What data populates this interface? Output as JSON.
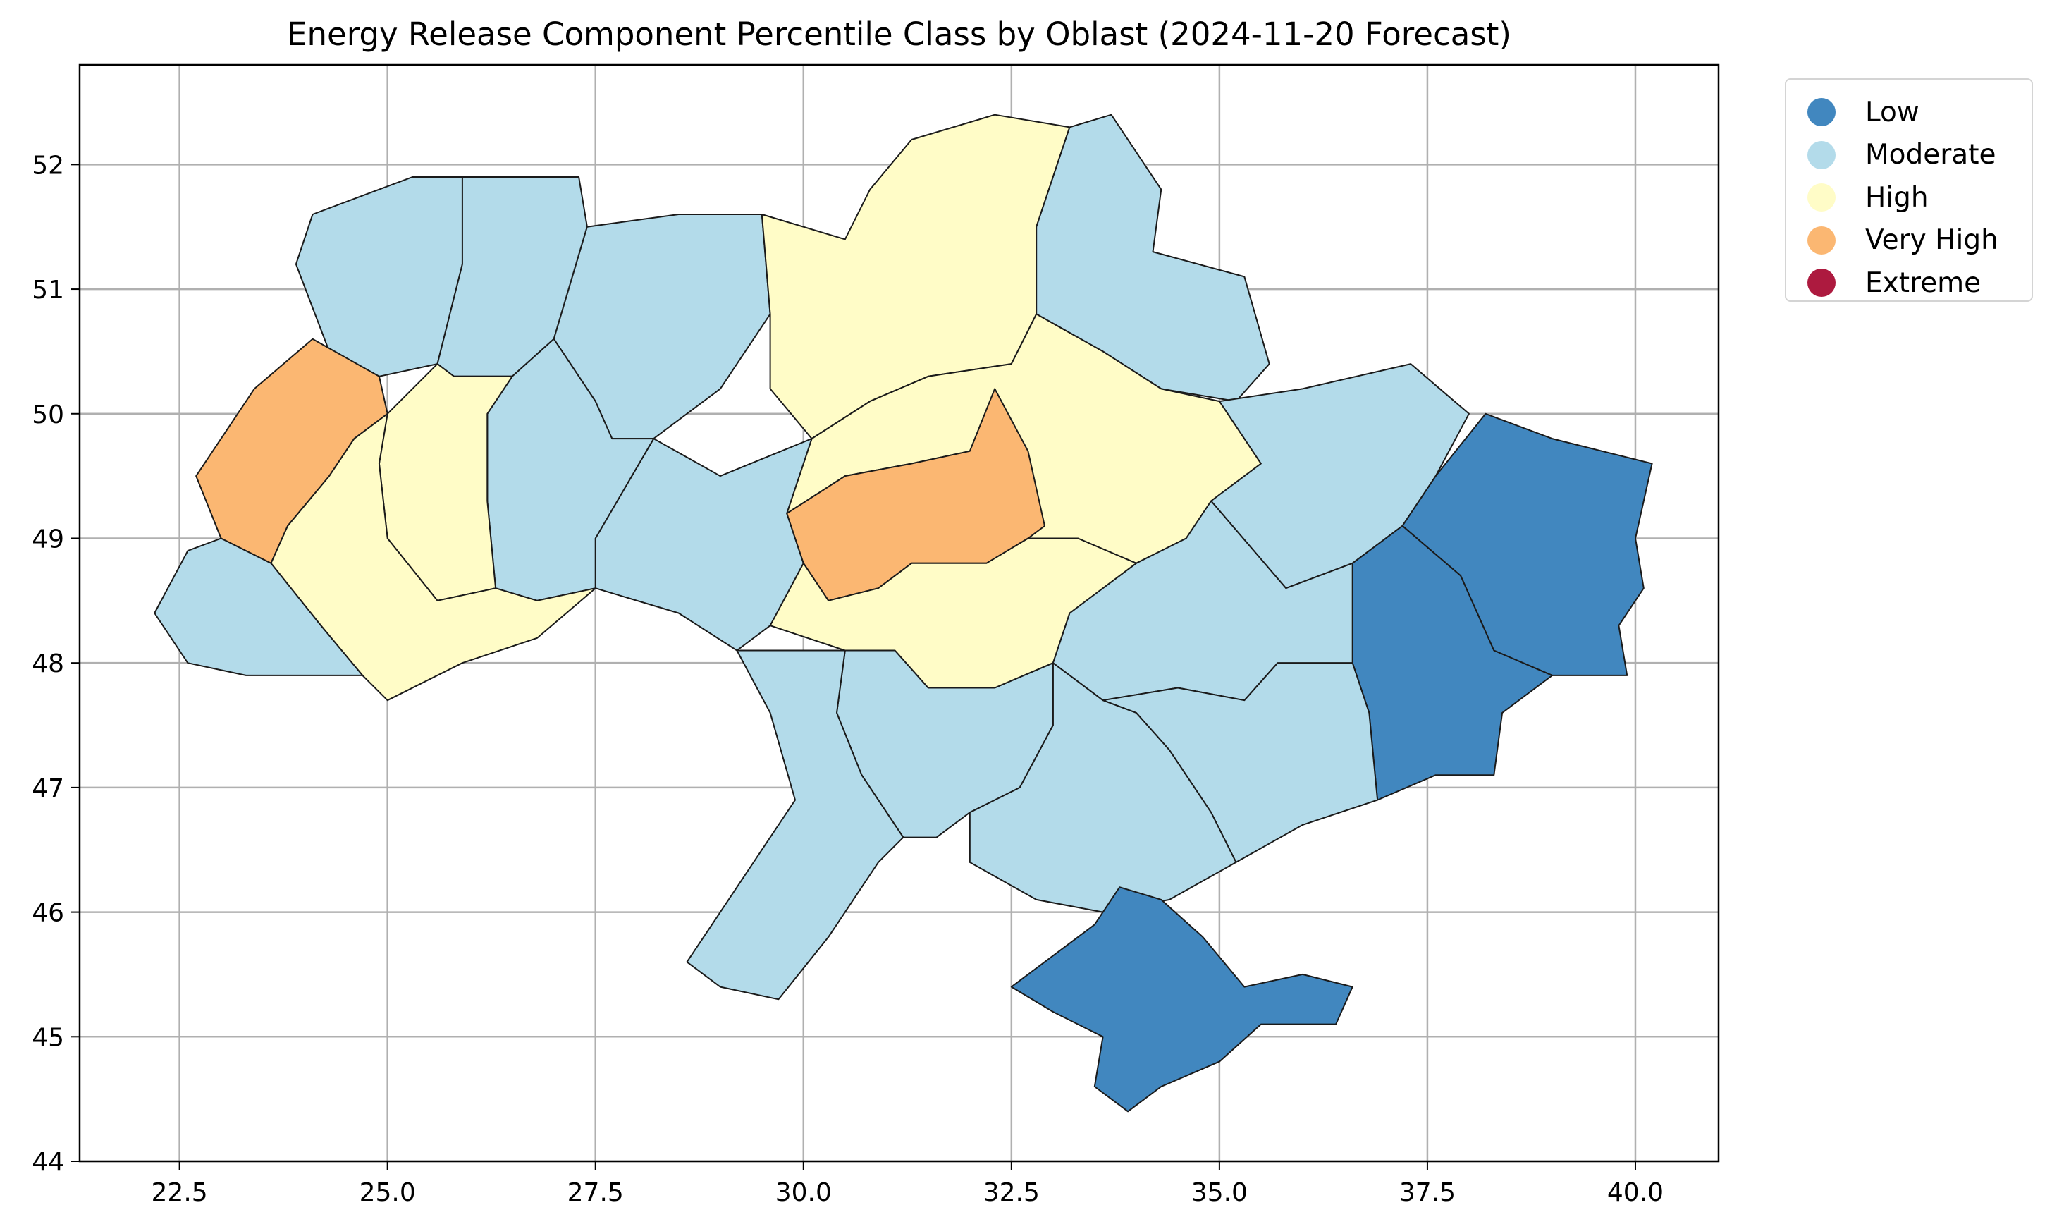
{
  "title": "Energy Release Component Percentile Class by Oblast (2024-11-20 Forecast)",
  "axes": {
    "x_ticks": [
      "22.5",
      "25.0",
      "27.5",
      "30.0",
      "32.5",
      "35.0",
      "37.5",
      "40.0"
    ],
    "y_ticks": [
      "44",
      "45",
      "46",
      "47",
      "48",
      "49",
      "50",
      "51",
      "52"
    ],
    "xlim": [
      21.3,
      41.0
    ],
    "ylim": [
      44.0,
      52.8
    ],
    "grid": true
  },
  "legend": {
    "placement": "outside-top-right",
    "items": [
      {
        "label": "Low",
        "color": "#4187bf"
      },
      {
        "label": "Moderate",
        "color": "#b3dbea"
      },
      {
        "label": "High",
        "color": "#fffcc7"
      },
      {
        "label": "Very High",
        "color": "#fbb772"
      },
      {
        "label": "Extreme",
        "color": "#ad1a3f"
      }
    ]
  },
  "colors": {
    "border": "#1a1a1a",
    "grid": "#b0b0b0"
  },
  "regions": [
    {
      "class": "Moderate",
      "poly": [
        [
          24.1,
          51.6
        ],
        [
          25.3,
          51.9
        ],
        [
          26.0,
          51.9
        ],
        [
          25.9,
          51.2
        ],
        [
          25.6,
          50.4
        ],
        [
          24.9,
          50.3
        ],
        [
          24.3,
          50.5
        ],
        [
          23.9,
          51.2
        ],
        [
          24.1,
          51.6
        ]
      ]
    },
    {
      "class": "Moderate",
      "poly": [
        [
          25.9,
          51.9
        ],
        [
          27.3,
          51.9
        ],
        [
          27.4,
          51.5
        ],
        [
          27.0,
          50.6
        ],
        [
          26.5,
          50.3
        ],
        [
          25.8,
          50.3
        ],
        [
          25.6,
          50.4
        ],
        [
          25.9,
          51.2
        ],
        [
          25.9,
          51.9
        ]
      ]
    },
    {
      "class": "Moderate",
      "poly": [
        [
          27.4,
          51.5
        ],
        [
          28.5,
          51.6
        ],
        [
          29.5,
          51.6
        ],
        [
          29.6,
          50.8
        ],
        [
          29.0,
          50.2
        ],
        [
          28.2,
          49.8
        ],
        [
          27.7,
          49.8
        ],
        [
          27.5,
          50.1
        ],
        [
          27.0,
          50.6
        ],
        [
          27.4,
          51.5
        ]
      ]
    },
    {
      "class": "High",
      "poly": [
        [
          29.5,
          51.6
        ],
        [
          30.5,
          51.4
        ],
        [
          30.8,
          51.8
        ],
        [
          31.3,
          52.2
        ],
        [
          32.3,
          52.4
        ],
        [
          33.2,
          52.3
        ],
        [
          32.8,
          51.5
        ],
        [
          32.8,
          50.8
        ],
        [
          32.5,
          50.4
        ],
        [
          31.5,
          50.3
        ],
        [
          30.8,
          50.1
        ],
        [
          30.1,
          49.8
        ],
        [
          29.6,
          50.2
        ],
        [
          29.6,
          50.8
        ],
        [
          29.5,
          51.6
        ]
      ]
    },
    {
      "class": "Moderate",
      "poly": [
        [
          33.2,
          52.3
        ],
        [
          33.7,
          52.4
        ],
        [
          34.3,
          51.8
        ],
        [
          34.2,
          51.3
        ],
        [
          35.3,
          51.1
        ],
        [
          35.6,
          50.4
        ],
        [
          35.2,
          50.1
        ],
        [
          34.3,
          50.2
        ],
        [
          33.6,
          50.5
        ],
        [
          32.8,
          50.8
        ],
        [
          32.8,
          51.5
        ],
        [
          33.2,
          52.3
        ]
      ]
    },
    {
      "class": "High",
      "poly": [
        [
          30.1,
          49.8
        ],
        [
          30.8,
          50.1
        ],
        [
          31.5,
          50.3
        ],
        [
          32.5,
          50.4
        ],
        [
          32.8,
          50.8
        ],
        [
          33.6,
          50.5
        ],
        [
          34.3,
          50.2
        ],
        [
          35.0,
          50.1
        ],
        [
          35.5,
          49.6
        ],
        [
          34.9,
          49.3
        ],
        [
          34.6,
          49.0
        ],
        [
          34.0,
          48.8
        ],
        [
          33.3,
          49.0
        ],
        [
          32.7,
          49.0
        ],
        [
          32.0,
          49.7
        ],
        [
          31.3,
          49.6
        ],
        [
          30.5,
          49.5
        ],
        [
          29.8,
          49.2
        ],
        [
          30.1,
          49.8
        ]
      ]
    },
    {
      "class": "Moderate",
      "poly": [
        [
          35.0,
          50.1
        ],
        [
          36.0,
          50.2
        ],
        [
          37.3,
          50.4
        ],
        [
          38.0,
          50.0
        ],
        [
          37.6,
          49.5
        ],
        [
          37.2,
          49.1
        ],
        [
          36.6,
          48.8
        ],
        [
          35.8,
          48.6
        ],
        [
          34.9,
          49.3
        ],
        [
          35.5,
          49.6
        ],
        [
          35.0,
          50.1
        ]
      ]
    },
    {
      "class": "Low",
      "poly": [
        [
          37.6,
          49.5
        ],
        [
          38.2,
          50.0
        ],
        [
          39.0,
          49.8
        ],
        [
          40.2,
          49.6
        ],
        [
          40.0,
          49.0
        ],
        [
          40.1,
          48.6
        ],
        [
          39.8,
          48.3
        ],
        [
          39.9,
          47.9
        ],
        [
          39.0,
          47.9
        ],
        [
          38.3,
          48.1
        ],
        [
          37.9,
          48.7
        ],
        [
          37.2,
          49.1
        ],
        [
          37.6,
          49.5
        ]
      ]
    },
    {
      "class": "Low",
      "poly": [
        [
          37.2,
          49.1
        ],
        [
          37.9,
          48.7
        ],
        [
          38.3,
          48.1
        ],
        [
          39.0,
          47.9
        ],
        [
          38.4,
          47.6
        ],
        [
          38.3,
          47.1
        ],
        [
          37.6,
          47.1
        ],
        [
          36.9,
          46.9
        ],
        [
          36.8,
          47.6
        ],
        [
          36.6,
          48.0
        ],
        [
          36.6,
          48.8
        ],
        [
          37.2,
          49.1
        ]
      ]
    },
    {
      "class": "Moderate",
      "poly": [
        [
          34.0,
          48.8
        ],
        [
          34.6,
          49.0
        ],
        [
          34.9,
          49.3
        ],
        [
          35.8,
          48.6
        ],
        [
          36.6,
          48.8
        ],
        [
          36.6,
          48.0
        ],
        [
          35.7,
          48.0
        ],
        [
          35.3,
          47.7
        ],
        [
          34.5,
          47.8
        ],
        [
          33.6,
          47.7
        ],
        [
          33.0,
          48.0
        ],
        [
          33.2,
          48.4
        ],
        [
          34.0,
          48.8
        ]
      ]
    },
    {
      "class": "Moderate",
      "poly": [
        [
          33.6,
          47.7
        ],
        [
          34.5,
          47.8
        ],
        [
          35.3,
          47.7
        ],
        [
          35.7,
          48.0
        ],
        [
          36.6,
          48.0
        ],
        [
          36.8,
          47.6
        ],
        [
          36.9,
          46.9
        ],
        [
          36.0,
          46.7
        ],
        [
          35.2,
          46.4
        ],
        [
          34.9,
          46.8
        ],
        [
          34.4,
          47.3
        ],
        [
          34.0,
          47.6
        ],
        [
          33.6,
          47.7
        ]
      ]
    },
    {
      "class": "Moderate",
      "poly": [
        [
          33.0,
          48.0
        ],
        [
          33.6,
          47.7
        ],
        [
          34.0,
          47.6
        ],
        [
          34.4,
          47.3
        ],
        [
          34.9,
          46.8
        ],
        [
          35.2,
          46.4
        ],
        [
          34.4,
          46.1
        ],
        [
          33.6,
          46.0
        ],
        [
          32.8,
          46.1
        ],
        [
          32.0,
          46.4
        ],
        [
          32.0,
          46.8
        ],
        [
          32.6,
          47.0
        ],
        [
          33.0,
          47.5
        ],
        [
          33.0,
          48.0
        ]
      ]
    },
    {
      "class": "Moderate",
      "poly": [
        [
          30.5,
          48.1
        ],
        [
          31.1,
          48.1
        ],
        [
          31.5,
          47.8
        ],
        [
          32.3,
          47.8
        ],
        [
          33.0,
          48.0
        ],
        [
          33.0,
          47.5
        ],
        [
          32.6,
          47.0
        ],
        [
          32.0,
          46.8
        ],
        [
          31.6,
          46.6
        ],
        [
          31.2,
          46.6
        ],
        [
          30.7,
          47.1
        ],
        [
          30.4,
          47.6
        ],
        [
          30.5,
          48.1
        ]
      ]
    },
    {
      "class": "Moderate",
      "poly": [
        [
          29.2,
          48.1
        ],
        [
          30.5,
          48.1
        ],
        [
          30.4,
          47.6
        ],
        [
          30.7,
          47.1
        ],
        [
          31.2,
          46.6
        ],
        [
          30.9,
          46.4
        ],
        [
          30.3,
          45.8
        ],
        [
          29.7,
          45.3
        ],
        [
          29.0,
          45.4
        ],
        [
          28.6,
          45.6
        ],
        [
          29.0,
          46.0
        ],
        [
          29.5,
          46.5
        ],
        [
          29.9,
          46.9
        ],
        [
          29.6,
          47.6
        ],
        [
          29.2,
          48.1
        ]
      ]
    },
    {
      "class": "Moderate",
      "poly": [
        [
          27.5,
          49.0
        ],
        [
          28.2,
          49.8
        ],
        [
          29.0,
          49.5
        ],
        [
          30.1,
          49.8
        ],
        [
          29.8,
          49.2
        ],
        [
          30.0,
          48.8
        ],
        [
          29.6,
          48.3
        ],
        [
          29.2,
          48.1
        ],
        [
          28.5,
          48.4
        ],
        [
          27.5,
          48.6
        ],
        [
          27.5,
          49.0
        ]
      ]
    },
    {
      "class": "Very High",
      "poly": [
        [
          29.8,
          49.2
        ],
        [
          30.5,
          49.5
        ],
        [
          31.3,
          49.6
        ],
        [
          32.0,
          49.7
        ],
        [
          32.3,
          50.2
        ],
        [
          32.7,
          49.7
        ],
        [
          32.9,
          49.1
        ],
        [
          32.7,
          49.0
        ],
        [
          32.2,
          48.8
        ],
        [
          31.3,
          48.8
        ],
        [
          30.9,
          48.6
        ],
        [
          30.3,
          48.5
        ],
        [
          30.0,
          48.8
        ],
        [
          29.8,
          49.2
        ]
      ]
    },
    {
      "class": "High",
      "poly": [
        [
          30.0,
          48.8
        ],
        [
          30.3,
          48.5
        ],
        [
          30.9,
          48.6
        ],
        [
          31.3,
          48.8
        ],
        [
          32.2,
          48.8
        ],
        [
          32.7,
          49.0
        ],
        [
          33.3,
          49.0
        ],
        [
          34.0,
          48.8
        ],
        [
          33.2,
          48.4
        ],
        [
          33.0,
          48.0
        ],
        [
          32.3,
          47.8
        ],
        [
          31.5,
          47.8
        ],
        [
          31.1,
          48.1
        ],
        [
          30.5,
          48.1
        ],
        [
          29.6,
          48.3
        ],
        [
          30.0,
          48.8
        ]
      ]
    },
    {
      "class": "Moderate",
      "poly": [
        [
          26.5,
          50.3
        ],
        [
          27.0,
          50.6
        ],
        [
          27.5,
          50.1
        ],
        [
          27.7,
          49.8
        ],
        [
          28.2,
          49.8
        ],
        [
          27.5,
          49.0
        ],
        [
          27.5,
          48.6
        ],
        [
          26.8,
          48.5
        ],
        [
          26.3,
          48.6
        ],
        [
          26.2,
          49.3
        ],
        [
          26.2,
          50.0
        ],
        [
          26.5,
          50.3
        ]
      ]
    },
    {
      "class": "High",
      "poly": [
        [
          25.6,
          50.4
        ],
        [
          25.8,
          50.3
        ],
        [
          26.5,
          50.3
        ],
        [
          26.2,
          50.0
        ],
        [
          26.2,
          49.3
        ],
        [
          26.3,
          48.6
        ],
        [
          25.6,
          48.5
        ],
        [
          25.0,
          49.0
        ],
        [
          24.9,
          49.6
        ],
        [
          25.0,
          50.0
        ],
        [
          25.6,
          50.4
        ]
      ]
    },
    {
      "class": "Very High",
      "poly": [
        [
          24.1,
          50.6
        ],
        [
          24.9,
          50.3
        ],
        [
          25.0,
          50.0
        ],
        [
          24.6,
          49.8
        ],
        [
          24.3,
          49.5
        ],
        [
          23.8,
          49.1
        ],
        [
          23.6,
          48.8
        ],
        [
          23.0,
          49.0
        ],
        [
          22.7,
          49.5
        ],
        [
          23.4,
          50.2
        ],
        [
          24.1,
          50.6
        ]
      ]
    },
    {
      "class": "High",
      "poly": [
        [
          23.8,
          49.1
        ],
        [
          24.3,
          49.5
        ],
        [
          24.6,
          49.8
        ],
        [
          25.0,
          50.0
        ],
        [
          24.9,
          49.6
        ],
        [
          25.0,
          49.0
        ],
        [
          25.6,
          48.5
        ],
        [
          26.3,
          48.6
        ],
        [
          26.8,
          48.5
        ],
        [
          27.5,
          48.6
        ],
        [
          26.8,
          48.2
        ],
        [
          25.9,
          48.0
        ],
        [
          25.0,
          47.7
        ],
        [
          24.7,
          47.9
        ],
        [
          24.2,
          48.3
        ],
        [
          23.6,
          48.8
        ],
        [
          23.8,
          49.1
        ]
      ]
    },
    {
      "class": "Moderate",
      "poly": [
        [
          22.2,
          48.4
        ],
        [
          22.6,
          48.9
        ],
        [
          23.0,
          49.0
        ],
        [
          23.6,
          48.8
        ],
        [
          24.2,
          48.3
        ],
        [
          24.7,
          47.9
        ],
        [
          24.0,
          47.9
        ],
        [
          23.3,
          47.9
        ],
        [
          22.6,
          48.0
        ],
        [
          22.2,
          48.4
        ]
      ]
    },
    {
      "class": "Low",
      "poly": [
        [
          32.5,
          45.4
        ],
        [
          33.5,
          45.9
        ],
        [
          33.8,
          46.2
        ],
        [
          34.3,
          46.1
        ],
        [
          34.8,
          45.8
        ],
        [
          35.3,
          45.4
        ],
        [
          36.0,
          45.5
        ],
        [
          36.6,
          45.4
        ],
        [
          36.4,
          45.1
        ],
        [
          35.5,
          45.1
        ],
        [
          35.0,
          44.8
        ],
        [
          34.3,
          44.6
        ],
        [
          33.9,
          44.4
        ],
        [
          33.5,
          44.6
        ],
        [
          33.6,
          45.0
        ],
        [
          33.0,
          45.2
        ],
        [
          32.5,
          45.4
        ]
      ]
    }
  ]
}
